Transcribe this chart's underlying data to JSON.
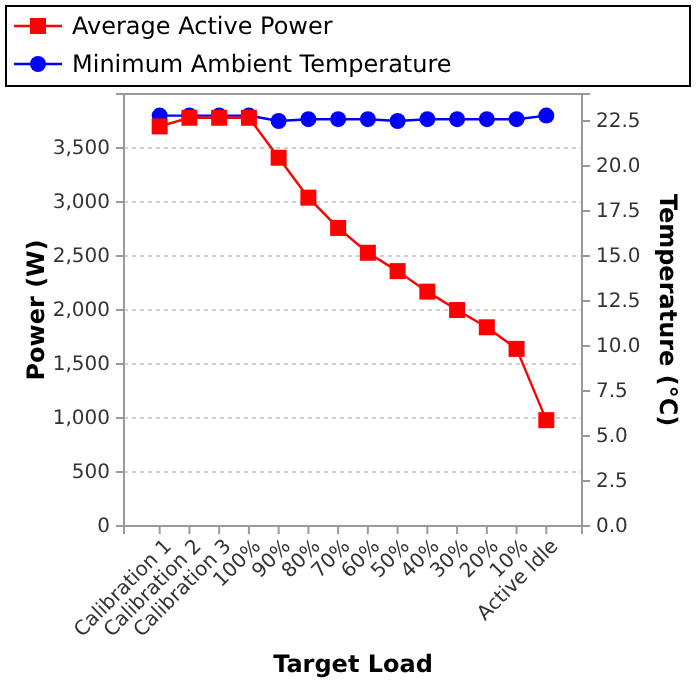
{
  "chart_data": {
    "type": "line",
    "xlabel": "Target Load",
    "ylabel": "Power (W)",
    "y2label": "Temperature (°C)",
    "categories": [
      "Calibration 1",
      "Calibration 2",
      "Calibration 3",
      "100%",
      "90%",
      "80%",
      "70%",
      "60%",
      "50%",
      "40%",
      "30%",
      "20%",
      "10%",
      "Active Idle"
    ],
    "series": [
      {
        "name": "Average Active Power",
        "color": "#ff0000",
        "marker": "square",
        "values": [
          3700,
          3780,
          3780,
          3780,
          3410,
          3040,
          2760,
          2530,
          2360,
          2170,
          2000,
          1840,
          1640,
          980
        ]
      },
      {
        "name": "Minimum Ambient Temperature",
        "color": "#0000ff",
        "marker": "circle",
        "axis": "y2",
        "values": [
          22.8,
          22.8,
          22.8,
          22.8,
          22.5,
          22.6,
          22.6,
          22.6,
          22.5,
          22.6,
          22.6,
          22.6,
          22.6,
          22.8
        ]
      }
    ],
    "ylim": [
      0,
      4000
    ],
    "yticks": [
      0,
      500,
      {
        "value": 1000,
        "label": "1,000"
      },
      {
        "value": 1500,
        "label": "1,500"
      },
      {
        "value": 2000,
        "label": "2,000"
      },
      {
        "value": 2500,
        "label": "2,500"
      },
      {
        "value": 3000,
        "label": "3,000"
      },
      {
        "value": 3500,
        "label": "3,500"
      }
    ],
    "y2lim": [
      0,
      24
    ],
    "y2ticks": [
      {
        "value": 0,
        "label": "0.0"
      },
      2.5,
      {
        "value": 5,
        "label": "5.0"
      },
      7.5,
      {
        "value": 10,
        "label": "10.0"
      },
      12.5,
      {
        "value": 15,
        "label": "15.0"
      },
      17.5,
      {
        "value": 20,
        "label": "20.0"
      },
      22.5
    ],
    "grid": "y",
    "legend": "top",
    "line_style": "solid"
  }
}
